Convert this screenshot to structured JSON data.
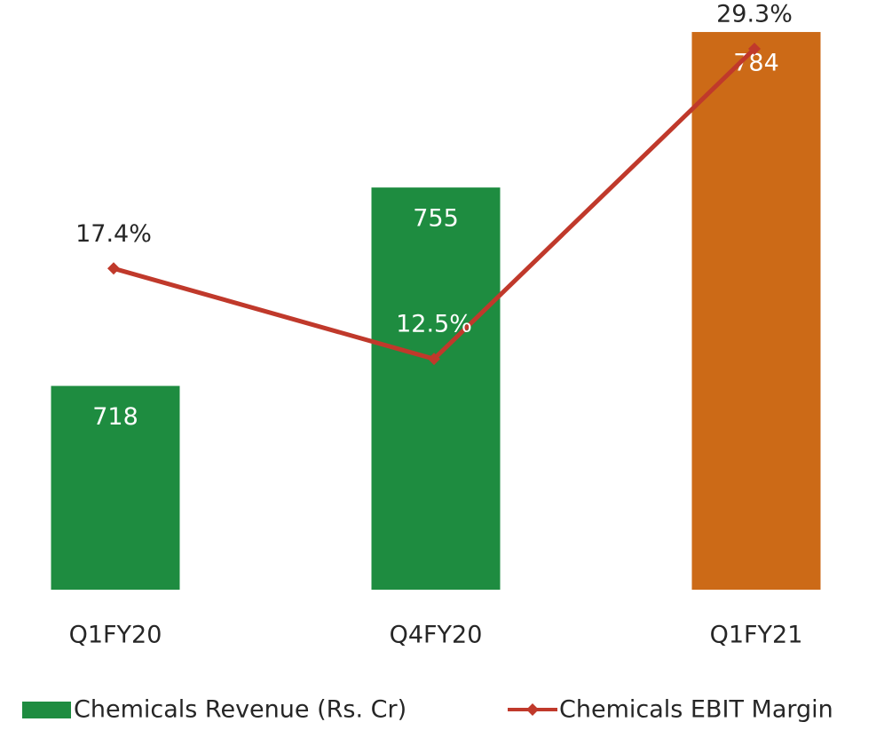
{
  "chart_data": {
    "type": "bar-line",
    "categories": [
      "Q1FY20",
      "Q4FY20",
      "Q1FY21"
    ],
    "series": [
      {
        "name": "Chemicals Revenue (Rs. Cr)",
        "type": "bar",
        "color": "#1e8c40",
        "colors": [
          "#1e8c40",
          "#1e8c40",
          "#cc6a17"
        ],
        "values": [
          718,
          755,
          784
        ]
      },
      {
        "name": "Chemicals EBIT Margin",
        "type": "line",
        "axis": "y2",
        "color": "#c0392b",
        "values": [
          17.4,
          12.5,
          29.3
        ],
        "value_labels": [
          "17.4%",
          "12.5%",
          "29.3%"
        ]
      }
    ],
    "ylim": [
      680,
      785
    ],
    "y2lim": [
      0,
      30.5
    ],
    "legend": "bottom"
  }
}
